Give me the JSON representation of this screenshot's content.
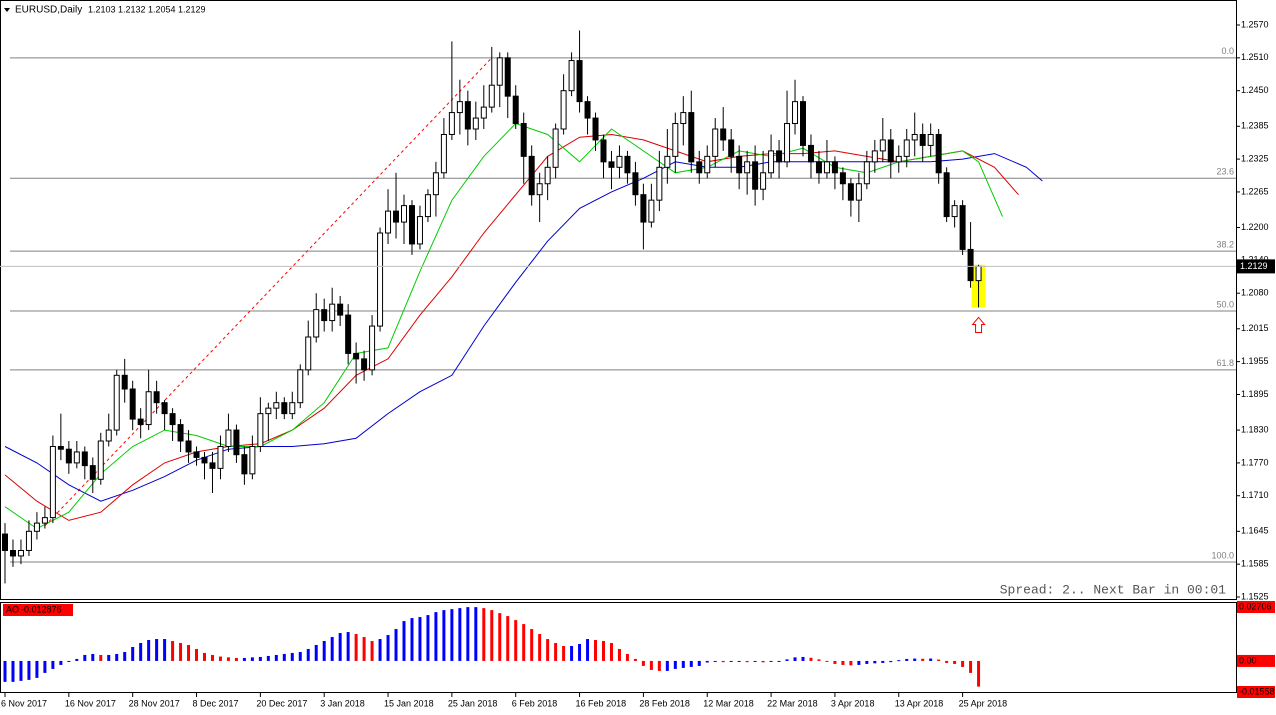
{
  "header": {
    "symbol": "EURUSD,Daily"
  },
  "status": "Spread: 2.. Next Bar in 00:01",
  "chart_data": [
    {
      "type": "candlestick",
      "categories": [
        "6 Nov 2017",
        null,
        null,
        null,
        null,
        null,
        null,
        null,
        "16 Nov 2017",
        null,
        null,
        null,
        null,
        null,
        null,
        null,
        "28 Nov 2017",
        null,
        null,
        null,
        null,
        null,
        null,
        null,
        "8 Dec 2017",
        null,
        null,
        null,
        null,
        null,
        null,
        null,
        "20 Dec 2017",
        null,
        null,
        null,
        null,
        null,
        null,
        null,
        "3 Jan 2018",
        null,
        null,
        null,
        null,
        null,
        null,
        null,
        "15 Jan 2018",
        null,
        null,
        null,
        null,
        null,
        null,
        null,
        "25 Jan 2018",
        null,
        null,
        null,
        null,
        null,
        null,
        null,
        "6 Feb 2018",
        null,
        null,
        null,
        null,
        null,
        null,
        null,
        "16 Feb 2018",
        null,
        null,
        null,
        null,
        null,
        null,
        null,
        "28 Feb 2018",
        null,
        null,
        null,
        null,
        null,
        null,
        null,
        "12 Mar 2018",
        null,
        null,
        null,
        null,
        null,
        null,
        null,
        "22 Mar 2018",
        null,
        null,
        null,
        null,
        null,
        null,
        null,
        "3 Apr 2018",
        null,
        null,
        null,
        null,
        null,
        null,
        null,
        "13 Apr 2018",
        null,
        null,
        null,
        null,
        null,
        null,
        null,
        "25 Apr 2018",
        null,
        null
      ],
      "open": [
        1.164,
        1.161,
        1.16,
        1.161,
        1.1645,
        1.166,
        1.167,
        1.18,
        1.1795,
        1.177,
        1.179,
        1.1765,
        1.174,
        1.181,
        1.183,
        1.193,
        1.1905,
        1.185,
        1.184,
        1.19,
        1.188,
        1.186,
        1.184,
        1.181,
        1.179,
        1.178,
        1.177,
        1.176,
        1.18,
        1.183,
        1.1785,
        1.175,
        1.18,
        1.186,
        1.187,
        1.188,
        1.186,
        1.188,
        1.194,
        1.2,
        1.205,
        1.203,
        1.206,
        1.204,
        1.197,
        1.196,
        1.194,
        1.202,
        1.219,
        1.223,
        1.221,
        1.224,
        1.217,
        1.222,
        1.226,
        1.23,
        1.237,
        1.241,
        1.243,
        1.238,
        1.24,
        1.242,
        1.246,
        1.251,
        1.244,
        1.239,
        1.233,
        1.226,
        1.228,
        1.231,
        1.238,
        1.245,
        1.2505,
        1.243,
        1.24,
        1.236,
        1.232,
        1.231,
        1.233,
        1.23,
        1.226,
        1.221,
        1.225,
        1.231,
        1.233,
        1.239,
        1.241,
        1.232,
        1.23,
        1.233,
        1.238,
        1.236,
        1.233,
        1.23,
        1.232,
        1.227,
        1.23,
        1.234,
        1.232,
        1.239,
        1.243,
        1.235,
        1.232,
        1.23,
        1.232,
        1.23,
        1.228,
        1.225,
        1.228,
        1.232,
        1.234,
        1.236,
        1.232,
        1.233,
        1.236,
        1.237,
        1.235,
        1.237,
        1.23,
        1.222,
        1.224,
        1.216,
        1.2103
      ],
      "high": [
        1.166,
        1.163,
        1.163,
        1.1665,
        1.168,
        1.169,
        1.182,
        1.186,
        1.181,
        1.181,
        1.18,
        1.178,
        1.1825,
        1.186,
        1.194,
        1.196,
        1.192,
        1.187,
        1.194,
        1.192,
        1.1885,
        1.187,
        1.185,
        1.183,
        1.18,
        1.179,
        1.179,
        1.182,
        1.186,
        1.184,
        1.18,
        1.182,
        1.189,
        1.188,
        1.19,
        1.189,
        1.19,
        1.195,
        1.203,
        1.208,
        1.207,
        1.209,
        1.2075,
        1.206,
        1.199,
        1.1975,
        1.204,
        1.22,
        1.227,
        1.23,
        1.226,
        1.225,
        1.224,
        1.227,
        1.232,
        1.24,
        1.254,
        1.247,
        1.245,
        1.243,
        1.246,
        1.253,
        1.252,
        1.252,
        1.246,
        1.241,
        1.235,
        1.23,
        1.233,
        1.239,
        1.248,
        1.252,
        1.256,
        1.244,
        1.241,
        1.237,
        1.234,
        1.235,
        1.234,
        1.232,
        1.228,
        1.228,
        1.234,
        1.238,
        1.241,
        1.244,
        1.245,
        1.234,
        1.235,
        1.24,
        1.242,
        1.238,
        1.235,
        1.234,
        1.235,
        1.234,
        1.237,
        1.236,
        1.245,
        1.247,
        1.244,
        1.237,
        1.234,
        1.236,
        1.233,
        1.231,
        1.229,
        1.23,
        1.234,
        1.236,
        1.24,
        1.238,
        1.235,
        1.238,
        1.241,
        1.239,
        1.239,
        1.238,
        1.231,
        1.225,
        1.225,
        1.221,
        1.2132
      ],
      "low": [
        1.155,
        1.158,
        1.1585,
        1.16,
        1.163,
        1.165,
        1.166,
        1.1775,
        1.175,
        1.176,
        1.174,
        1.1715,
        1.173,
        1.18,
        1.182,
        1.188,
        1.183,
        1.1815,
        1.183,
        1.186,
        1.183,
        1.181,
        1.179,
        1.177,
        1.1765,
        1.174,
        1.1715,
        1.174,
        1.179,
        1.177,
        1.173,
        1.174,
        1.179,
        1.181,
        1.185,
        1.185,
        1.185,
        1.187,
        1.193,
        1.199,
        1.201,
        1.201,
        1.202,
        1.195,
        1.1915,
        1.192,
        1.193,
        1.201,
        1.217,
        1.218,
        1.217,
        1.215,
        1.216,
        1.221,
        1.222,
        1.229,
        1.236,
        1.237,
        1.235,
        1.236,
        1.238,
        1.241,
        1.242,
        1.24,
        1.238,
        1.228,
        1.224,
        1.221,
        1.225,
        1.229,
        1.237,
        1.244,
        1.241,
        1.237,
        1.234,
        1.229,
        1.227,
        1.229,
        1.228,
        1.224,
        1.216,
        1.22,
        1.223,
        1.228,
        1.23,
        1.235,
        1.23,
        1.228,
        1.229,
        1.231,
        1.234,
        1.23,
        1.227,
        1.226,
        1.224,
        1.225,
        1.229,
        1.229,
        1.231,
        1.237,
        1.233,
        1.229,
        1.228,
        1.229,
        1.227,
        1.225,
        1.222,
        1.221,
        1.227,
        1.23,
        1.232,
        1.229,
        1.23,
        1.231,
        1.233,
        1.232,
        1.233,
        1.228,
        1.221,
        1.22,
        1.215,
        1.209,
        1.2054
      ],
      "close": [
        1.161,
        1.16,
        1.161,
        1.1645,
        1.166,
        1.167,
        1.18,
        1.1795,
        1.177,
        1.179,
        1.1765,
        1.174,
        1.181,
        1.183,
        1.193,
        1.1905,
        1.185,
        1.184,
        1.19,
        1.188,
        1.186,
        1.184,
        1.181,
        1.179,
        1.178,
        1.177,
        1.176,
        1.18,
        1.183,
        1.1785,
        1.175,
        1.18,
        1.186,
        1.187,
        1.188,
        1.186,
        1.188,
        1.194,
        1.2,
        1.205,
        1.203,
        1.206,
        1.204,
        1.197,
        1.196,
        1.194,
        1.202,
        1.219,
        1.223,
        1.221,
        1.224,
        1.217,
        1.222,
        1.226,
        1.23,
        1.237,
        1.241,
        1.243,
        1.238,
        1.24,
        1.242,
        1.246,
        1.251,
        1.244,
        1.239,
        1.233,
        1.226,
        1.228,
        1.231,
        1.238,
        1.245,
        1.2505,
        1.243,
        1.24,
        1.236,
        1.232,
        1.231,
        1.233,
        1.23,
        1.226,
        1.221,
        1.225,
        1.231,
        1.233,
        1.239,
        1.241,
        1.232,
        1.23,
        1.233,
        1.238,
        1.236,
        1.233,
        1.23,
        1.232,
        1.227,
        1.23,
        1.234,
        1.232,
        1.239,
        1.243,
        1.235,
        1.232,
        1.23,
        1.232,
        1.23,
        1.228,
        1.225,
        1.228,
        1.232,
        1.234,
        1.236,
        1.232,
        1.233,
        1.236,
        1.237,
        1.235,
        1.237,
        1.23,
        1.222,
        1.224,
        1.216,
        1.2103,
        1.2129
      ],
      "up_color": "#ffffff",
      "down_color": "#000000",
      "ylim": [
        1.1525,
        1.257
      ],
      "yticks": [
        {
          "value": 1.257,
          "label": "1.2570"
        },
        {
          "value": 1.251,
          "label": "1.2510"
        },
        {
          "value": 1.245,
          "label": "1.2450"
        },
        {
          "value": 1.2385,
          "label": "1.2385"
        },
        {
          "value": 1.2325,
          "label": "1.2325"
        },
        {
          "value": 1.2265,
          "label": "1.2265"
        },
        {
          "value": 1.22,
          "label": "1.2200"
        },
        {
          "value": 1.214,
          "label": "1.2140"
        },
        {
          "value": 1.208,
          "label": "1.2080"
        },
        {
          "value": 1.2015,
          "label": "1.2015"
        },
        {
          "value": 1.1955,
          "label": "1.1955"
        },
        {
          "value": 1.1895,
          "label": "1.1895"
        },
        {
          "value": 1.183,
          "label": "1.1830"
        },
        {
          "value": 1.177,
          "label": "1.1770"
        },
        {
          "value": 1.171,
          "label": "1.1710"
        },
        {
          "value": 1.1645,
          "label": "1.1645"
        },
        {
          "value": 1.1585,
          "label": "1.1585"
        },
        {
          "value": 1.1525,
          "label": "1.1525"
        }
      ],
      "fib_levels": [
        {
          "label": "0.0",
          "value": 1.251
        },
        {
          "label": "23.6",
          "value": 1.229
        },
        {
          "label": "38.2",
          "value": 1.2157
        },
        {
          "label": "50.0",
          "value": 1.20475
        },
        {
          "label": "61.8",
          "value": 1.194
        },
        {
          "label": "100.0",
          "value": 1.1589
        }
      ],
      "trendline": {
        "x": [
          5,
          61
        ],
        "values": [
          1.1655,
          1.251
        ],
        "color": "#ff0000"
      },
      "series": [
        {
          "color": "#0000cc",
          "x": [
            0,
            4,
            8,
            12,
            16,
            20,
            24,
            28,
            32,
            36,
            40,
            44,
            48,
            52,
            56,
            60,
            64,
            68,
            72,
            76,
            80,
            84,
            88,
            92,
            96,
            100,
            104,
            108,
            112,
            116,
            120,
            124,
            128,
            130
          ],
          "values": [
            1.18,
            1.177,
            1.173,
            1.17,
            1.172,
            1.1745,
            1.1775,
            1.1795,
            1.18,
            1.18,
            1.1805,
            1.1815,
            1.186,
            1.19,
            1.193,
            1.202,
            1.21,
            1.2175,
            1.2235,
            1.2265,
            1.229,
            1.232,
            1.231,
            1.231,
            1.232,
            1.232,
            1.232,
            1.232,
            1.232,
            1.232,
            1.2325,
            1.2335,
            1.231,
            1.2285
          ]
        },
        {
          "color": "#dd0000",
          "x": [
            0,
            4,
            8,
            12,
            16,
            20,
            24,
            28,
            32,
            36,
            40,
            44,
            48,
            52,
            56,
            60,
            64,
            68,
            72,
            76,
            80,
            84,
            88,
            92,
            96,
            100,
            104,
            108,
            112,
            116,
            120,
            124,
            127
          ],
          "values": [
            1.1748,
            1.17,
            1.1665,
            1.168,
            1.173,
            1.177,
            1.179,
            1.18,
            1.1805,
            1.183,
            1.187,
            1.193,
            1.196,
            1.204,
            1.211,
            1.219,
            1.226,
            1.233,
            1.2365,
            1.237,
            1.236,
            1.234,
            1.232,
            1.233,
            1.2335,
            1.2335,
            1.234,
            1.233,
            1.232,
            1.233,
            1.234,
            1.231,
            1.226
          ]
        },
        {
          "color": "#00cc00",
          "x": [
            0,
            4,
            8,
            12,
            16,
            20,
            24,
            28,
            32,
            36,
            40,
            44,
            48,
            52,
            56,
            60,
            64,
            68,
            72,
            76,
            80,
            84,
            88,
            92,
            96,
            100,
            104,
            108,
            112,
            116,
            120,
            122,
            125
          ],
          "values": [
            1.169,
            1.165,
            1.168,
            1.175,
            1.18,
            1.183,
            1.182,
            1.18,
            1.18,
            1.183,
            1.188,
            1.197,
            1.198,
            1.212,
            1.225,
            1.233,
            1.239,
            1.237,
            1.232,
            1.238,
            1.234,
            1.23,
            1.231,
            1.234,
            1.233,
            1.2345,
            1.231,
            1.23,
            1.232,
            1.233,
            1.234,
            1.232,
            1.222
          ]
        }
      ]
    },
    {
      "type": "bar",
      "title": "AO",
      "values": [
        -0.0105,
        -0.0105,
        -0.01,
        -0.0095,
        -0.0085,
        -0.006,
        -0.004,
        -0.002,
        -0.0005,
        0.001,
        0.003,
        0.0035,
        0.003,
        0.003,
        0.0035,
        0.0045,
        0.007,
        0.009,
        0.0105,
        0.011,
        0.011,
        0.01,
        0.009,
        0.008,
        0.006,
        0.004,
        0.003,
        0.0022,
        0.0018,
        0.0015,
        0.0015,
        0.0018,
        0.002,
        0.0025,
        0.003,
        0.0035,
        0.004,
        0.0045,
        0.006,
        0.008,
        0.01,
        0.012,
        0.014,
        0.0145,
        0.0135,
        0.012,
        0.01,
        0.011,
        0.013,
        0.016,
        0.02,
        0.0215,
        0.022,
        0.023,
        0.0245,
        0.0255,
        0.026,
        0.0265,
        0.027,
        0.027,
        0.0265,
        0.0255,
        0.024,
        0.0225,
        0.0205,
        0.0185,
        0.016,
        0.0135,
        0.011,
        0.009,
        0.0075,
        0.0075,
        0.0085,
        0.011,
        0.0105,
        0.01,
        0.009,
        0.006,
        0.0035,
        0.001,
        -0.0025,
        -0.0045,
        -0.005,
        -0.005,
        -0.004,
        -0.0035,
        -0.003,
        -0.0025,
        -0.0008,
        -0.0005,
        -0.0006,
        -0.0005,
        -0.0005,
        -0.0006,
        -0.0005,
        -0.0007,
        -0.0002,
        -0.0001,
        0.0008,
        0.0018,
        0.002,
        0.0016,
        0.0008,
        -0.0002,
        -0.0015,
        -0.002,
        -0.0022,
        -0.002,
        -0.0015,
        -0.0012,
        -0.001,
        -0.0006,
        0.0004,
        0.001,
        0.0012,
        0.0011,
        0.0012,
        0.0007,
        -0.001,
        -0.0015,
        -0.003,
        -0.006,
        -0.012876
      ],
      "up_color": "#0000ff",
      "down_color": "#ff0000",
      "ylim": [
        -0.01558,
        0.02706
      ],
      "yticks": [
        0.02706,
        {
          "value": 0,
          "label": "0.00"
        },
        -0.01558
      ]
    }
  ]
}
